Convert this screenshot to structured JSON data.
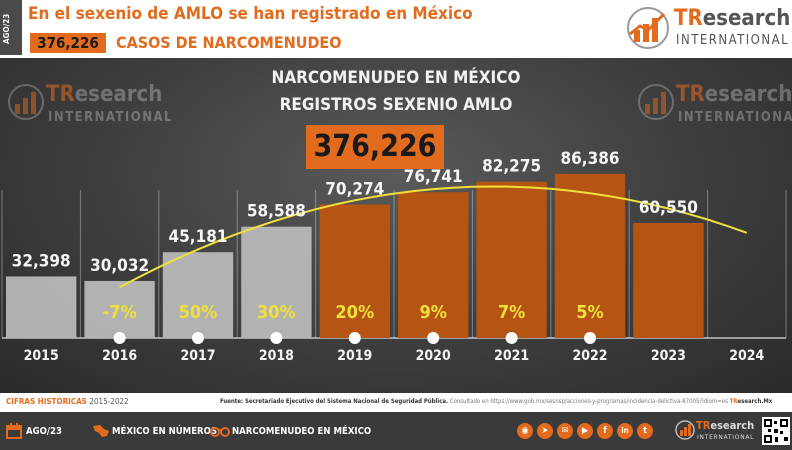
{
  "header": {
    "date_tag": "AGO/23",
    "headline": "En el sexenio de AMLO se han registrado en México",
    "total": "376,226",
    "subtitle": "CASOS DE NARCOMENUDEO"
  },
  "logo": {
    "tr": "TR",
    "esearch": "esearch",
    "international": "INTERNATIONAL"
  },
  "chart_data": {
    "type": "bar",
    "title": "NARCOMENUDEO EN MÉXICO",
    "subtitle": "REGISTROS SEXENIO AMLO",
    "total_label": "376,226",
    "categories": [
      "2015",
      "2016",
      "2017",
      "2018",
      "2019",
      "2020",
      "2021",
      "2022",
      "2023",
      "2024"
    ],
    "values": [
      32398,
      30032,
      45181,
      58588,
      70274,
      76741,
      82275,
      86386,
      60550,
      null
    ],
    "value_labels": [
      "32,398",
      "30,032",
      "45,181",
      "58,588",
      "70,274",
      "76,741",
      "82,275",
      "86,386",
      "60,550",
      ""
    ],
    "pct_labels": [
      "",
      "-7%",
      "50%",
      "30%",
      "20%",
      "9%",
      "7%",
      "5%",
      "",
      ""
    ],
    "bar_colors": {
      "pre_amlo": "#b8b8b8",
      "amlo": "#b65414"
    },
    "trend_color": "#f0e13a",
    "trend_line": {
      "type": "polynomial",
      "from": "2016",
      "to": "2024"
    },
    "ylim": [
      0,
      100000
    ]
  },
  "footer": {
    "historical_label": "CIFRAS HISTÓRICAS",
    "historical_range": "2015-2022",
    "source_label": "Fuente: Secretariado Ejecutivo del Sistema Nacional de Seguridad Pública.",
    "source_link": "Consultado en https://www.gob.mx/sesnsp/acciones-y-programas/incidencia-delictiva-87005?idiom=es",
    "site_tr": "TR",
    "site_rest": "esearch.Mx",
    "items": [
      {
        "icon": "calendar-icon",
        "label": "AGO/23"
      },
      {
        "icon": "mexico-map-icon",
        "label": "MÉXICO EN NÚMEROS"
      },
      {
        "icon": "handcuffs-icon",
        "label": "NARCOMENUDEO EN MÉXICO"
      }
    ],
    "social": [
      "rss",
      "telegram",
      "mail",
      "youtube",
      "facebook",
      "linkedin",
      "twitter"
    ]
  }
}
